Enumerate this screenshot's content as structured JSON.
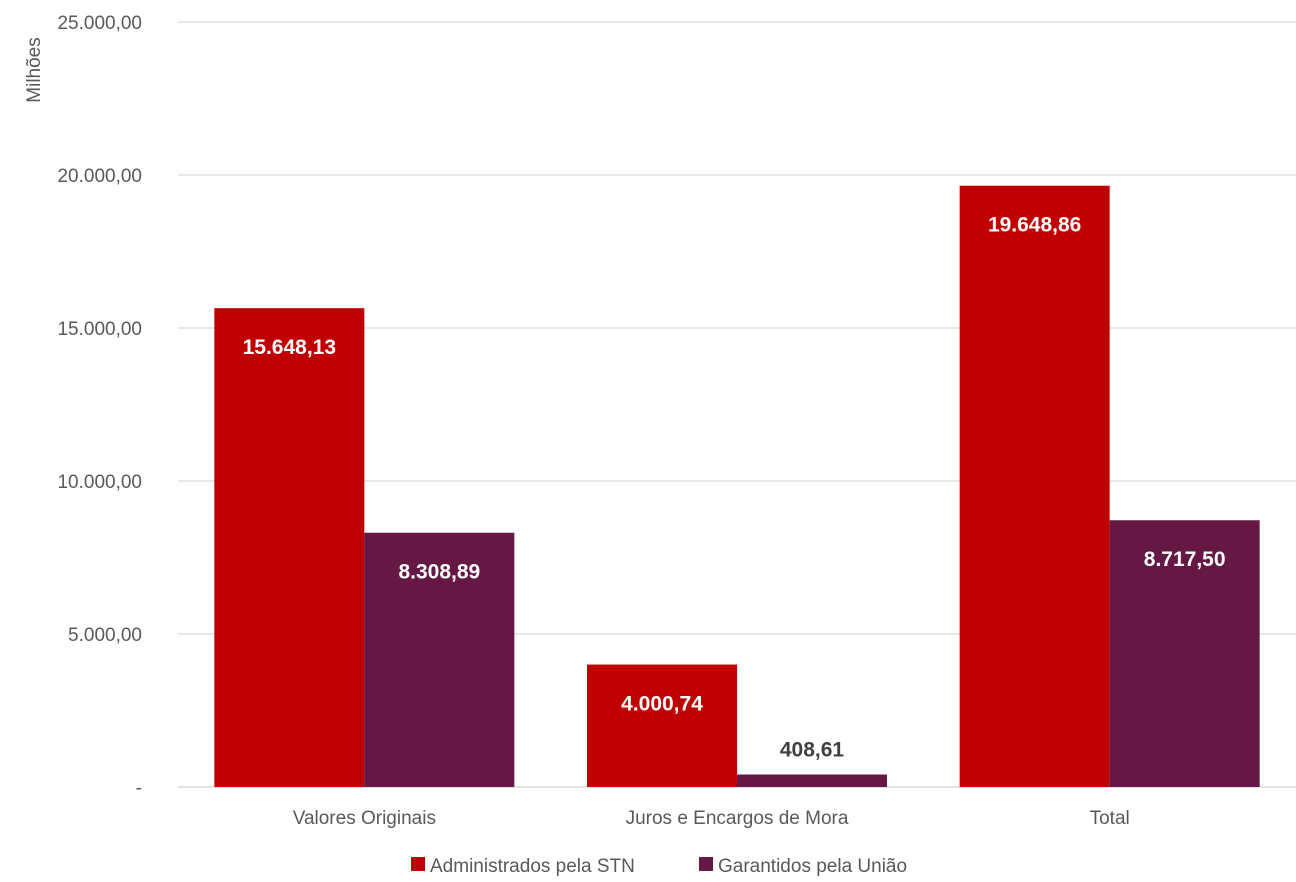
{
  "chart_data": {
    "type": "bar",
    "ylabel": "Milhões",
    "ylim": [
      0,
      25000
    ],
    "yticks": [
      {
        "value": 0,
        "label": "-"
      },
      {
        "value": 5000,
        "label": "5.000,00"
      },
      {
        "value": 10000,
        "label": "10.000,00"
      },
      {
        "value": 15000,
        "label": "15.000,00"
      },
      {
        "value": 20000,
        "label": "20.000,00"
      },
      {
        "value": 25000,
        "label": "25.000,00"
      }
    ],
    "grid": true,
    "legend_position": "bottom",
    "categories": [
      "Valores Originais",
      "Juros e Encargos de Mora",
      "Total"
    ],
    "series": [
      {
        "name": "Administrados pela STN",
        "color": "#C00000",
        "values": [
          15648.13,
          4000.74,
          19648.86
        ],
        "labels": [
          "15.648,13",
          "4.000,74",
          "19.648,86"
        ]
      },
      {
        "name": "Garantidos pela União",
        "color": "#641843",
        "values": [
          8308.89,
          408.61,
          8717.5
        ],
        "labels": [
          "8.308,89",
          "408,61",
          "8.717,50"
        ]
      }
    ]
  }
}
